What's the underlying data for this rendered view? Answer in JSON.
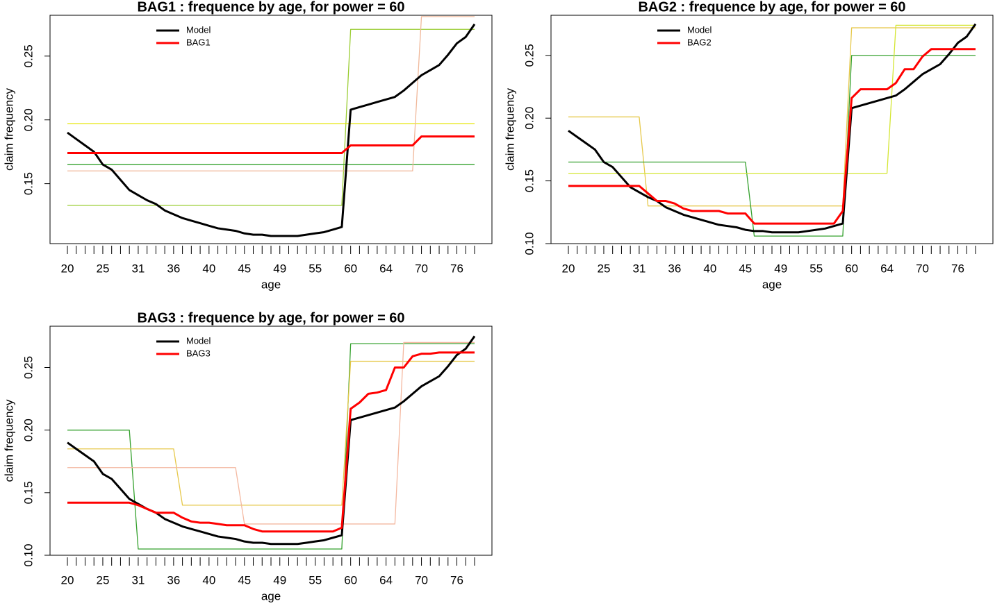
{
  "chart_data": [
    {
      "type": "line",
      "title": "BAG1 : frequence by age, for power = 60",
      "x_label": "age",
      "y_label": "claim frequency",
      "legend": "top-left",
      "categories": [
        "20",
        null,
        null,
        null,
        "25",
        null,
        null,
        null,
        "31",
        null,
        null,
        null,
        "36",
        null,
        null,
        null,
        "40",
        null,
        null,
        null,
        "45",
        null,
        null,
        null,
        "49",
        null,
        null,
        null,
        "55",
        null,
        null,
        null,
        "60",
        null,
        null,
        null,
        "64",
        null,
        null,
        null,
        "70",
        null,
        null,
        null,
        "76",
        null,
        null
      ],
      "ylim": [
        0.103,
        0.282
      ],
      "yticks": [
        0.15,
        {
          "value": 0.2,
          "label": "0.20"
        },
        0.25
      ],
      "series": [
        {
          "name": "Model",
          "color": "#000000",
          "values": [
            0.19,
            0.185,
            0.18,
            0.175,
            0.165,
            0.161,
            0.153,
            0.145,
            0.141,
            0.137,
            0.134,
            0.129,
            0.126,
            0.123,
            0.121,
            0.119,
            0.117,
            0.115,
            0.114,
            0.113,
            0.111,
            0.11,
            0.11,
            0.109,
            0.109,
            0.109,
            0.109,
            0.11,
            0.111,
            0.112,
            0.114,
            0.116,
            0.208,
            0.21,
            0.212,
            0.214,
            0.216,
            0.218,
            0.223,
            0.229,
            0.235,
            0.239,
            0.243,
            0.251,
            0.26,
            0.265,
            0.275
          ]
        },
        {
          "name": "BAG1",
          "color": "#ff0000",
          "values": [
            0.174,
            0.174,
            0.174,
            0.174,
            0.174,
            0.174,
            0.174,
            0.174,
            0.174,
            0.174,
            0.174,
            0.174,
            0.174,
            0.174,
            0.174,
            0.174,
            0.174,
            0.174,
            0.174,
            0.174,
            0.174,
            0.174,
            0.174,
            0.174,
            0.174,
            0.174,
            0.174,
            0.174,
            0.174,
            0.174,
            0.174,
            0.174,
            0.18,
            0.18,
            0.18,
            0.18,
            0.18,
            0.18,
            0.18,
            0.18,
            0.187,
            0.187,
            0.187,
            0.187,
            0.187,
            0.187,
            0.187
          ]
        }
      ],
      "trees": [
        {
          "color": "#9acd32",
          "values": [
            0.133,
            0.133,
            0.133,
            0.133,
            0.133,
            0.133,
            0.133,
            0.133,
            0.133,
            0.133,
            0.133,
            0.133,
            0.133,
            0.133,
            0.133,
            0.133,
            0.133,
            0.133,
            0.133,
            0.133,
            0.133,
            0.133,
            0.133,
            0.133,
            0.133,
            0.133,
            0.133,
            0.133,
            0.133,
            0.133,
            0.133,
            0.133,
            0.271,
            0.271,
            0.271,
            0.271,
            0.271,
            0.271,
            0.271,
            0.271,
            0.271,
            0.271,
            0.271,
            0.271,
            0.271,
            0.271,
            0.271
          ]
        },
        {
          "color": "#e6e600",
          "values": [
            0.197,
            0.197,
            0.197,
            0.197,
            0.197,
            0.197,
            0.197,
            0.197,
            0.197,
            0.197,
            0.197,
            0.197,
            0.197,
            0.197,
            0.197,
            0.197,
            0.197,
            0.197,
            0.197,
            0.197,
            0.197,
            0.197,
            0.197,
            0.197,
            0.197,
            0.197,
            0.197,
            0.197,
            0.197,
            0.197,
            0.197,
            0.197,
            0.197,
            0.197,
            0.197,
            0.197,
            0.197,
            0.197,
            0.197,
            0.197,
            0.197,
            0.197,
            0.197,
            0.197,
            0.197,
            0.197,
            0.197
          ]
        },
        {
          "color": "#33a02c",
          "values": [
            0.165,
            0.165,
            0.165,
            0.165,
            0.165,
            0.165,
            0.165,
            0.165,
            0.165,
            0.165,
            0.165,
            0.165,
            0.165,
            0.165,
            0.165,
            0.165,
            0.165,
            0.165,
            0.165,
            0.165,
            0.165,
            0.165,
            0.165,
            0.165,
            0.165,
            0.165,
            0.165,
            0.165,
            0.165,
            0.165,
            0.165,
            0.165,
            0.165,
            0.165,
            0.165,
            0.165,
            0.165,
            0.165,
            0.165,
            0.165,
            0.165,
            0.165,
            0.165,
            0.165,
            0.165,
            0.165,
            0.165
          ]
        },
        {
          "color": "#f0b89a",
          "values": [
            0.16,
            0.16,
            0.16,
            0.16,
            0.16,
            0.16,
            0.16,
            0.16,
            0.16,
            0.16,
            0.16,
            0.16,
            0.16,
            0.16,
            0.16,
            0.16,
            0.16,
            0.16,
            0.16,
            0.16,
            0.16,
            0.16,
            0.16,
            0.16,
            0.16,
            0.16,
            0.16,
            0.16,
            0.16,
            0.16,
            0.16,
            0.16,
            0.16,
            0.16,
            0.16,
            0.16,
            0.16,
            0.16,
            0.16,
            0.16,
            0.281,
            0.281,
            0.281,
            0.281,
            0.281,
            0.281,
            0.281
          ]
        }
      ]
    },
    {
      "type": "line",
      "title": "BAG2 : frequence by age, for power = 60",
      "x_label": "age",
      "y_label": "claim frequency",
      "legend": "top-left",
      "categories": [
        "20",
        null,
        null,
        null,
        "25",
        null,
        null,
        null,
        "31",
        null,
        null,
        null,
        "36",
        null,
        null,
        null,
        "40",
        null,
        null,
        null,
        "45",
        null,
        null,
        null,
        "49",
        null,
        null,
        null,
        "55",
        null,
        null,
        null,
        "60",
        null,
        null,
        null,
        "64",
        null,
        null,
        null,
        "70",
        null,
        null,
        null,
        "76",
        null,
        null
      ],
      "ylim": [
        0.1,
        0.282
      ],
      "yticks": [
        {
          "value": 0.1,
          "label": "0.10"
        },
        0.15,
        {
          "value": 0.2,
          "label": "0.20"
        },
        0.25
      ],
      "series": [
        {
          "name": "Model",
          "color": "#000000",
          "values": [
            0.19,
            0.185,
            0.18,
            0.175,
            0.165,
            0.161,
            0.153,
            0.145,
            0.141,
            0.137,
            0.134,
            0.129,
            0.126,
            0.123,
            0.121,
            0.119,
            0.117,
            0.115,
            0.114,
            0.113,
            0.111,
            0.11,
            0.11,
            0.109,
            0.109,
            0.109,
            0.109,
            0.11,
            0.111,
            0.112,
            0.114,
            0.116,
            0.208,
            0.21,
            0.212,
            0.214,
            0.216,
            0.218,
            0.223,
            0.229,
            0.235,
            0.239,
            0.243,
            0.251,
            0.26,
            0.265,
            0.275
          ]
        },
        {
          "name": "BAG2",
          "color": "#ff0000",
          "values": [
            0.146,
            0.146,
            0.146,
            0.146,
            0.146,
            0.146,
            0.146,
            0.146,
            0.146,
            0.14,
            0.134,
            0.134,
            0.132,
            0.128,
            0.126,
            0.126,
            0.126,
            0.126,
            0.124,
            0.124,
            0.124,
            0.116,
            0.116,
            0.116,
            0.116,
            0.116,
            0.116,
            0.116,
            0.116,
            0.116,
            0.116,
            0.126,
            0.216,
            0.223,
            0.223,
            0.223,
            0.223,
            0.228,
            0.239,
            0.239,
            0.249,
            0.255,
            0.255,
            0.255,
            0.255,
            0.255,
            0.255
          ]
        }
      ],
      "trees": [
        {
          "color": "#e6c84a",
          "values": [
            0.201,
            0.201,
            0.201,
            0.201,
            0.201,
            0.201,
            0.201,
            0.201,
            0.201,
            0.13,
            0.13,
            0.13,
            0.13,
            0.13,
            0.13,
            0.13,
            0.13,
            0.13,
            0.13,
            0.13,
            0.13,
            0.13,
            0.13,
            0.13,
            0.13,
            0.13,
            0.13,
            0.13,
            0.13,
            0.13,
            0.13,
            0.13,
            0.272,
            0.272,
            0.272,
            0.272,
            0.272,
            0.272,
            0.272,
            0.272,
            0.272,
            0.272,
            0.272,
            0.272,
            0.272,
            0.272,
            0.272
          ]
        },
        {
          "color": "#33a02c",
          "values": [
            0.165,
            0.165,
            0.165,
            0.165,
            0.165,
            0.165,
            0.165,
            0.165,
            0.165,
            0.165,
            0.165,
            0.165,
            0.165,
            0.165,
            0.165,
            0.165,
            0.165,
            0.165,
            0.165,
            0.165,
            0.165,
            0.106,
            0.106,
            0.106,
            0.106,
            0.106,
            0.106,
            0.106,
            0.106,
            0.106,
            0.106,
            0.106,
            0.25,
            0.25,
            0.25,
            0.25,
            0.25,
            0.25,
            0.25,
            0.25,
            0.25,
            0.25,
            0.25,
            0.25,
            0.25,
            0.25,
            0.25
          ]
        },
        {
          "color": "#d4e632",
          "values": [
            0.156,
            0.156,
            0.156,
            0.156,
            0.156,
            0.156,
            0.156,
            0.156,
            0.156,
            0.156,
            0.156,
            0.156,
            0.156,
            0.156,
            0.156,
            0.156,
            0.156,
            0.156,
            0.156,
            0.156,
            0.156,
            0.156,
            0.156,
            0.156,
            0.156,
            0.156,
            0.156,
            0.156,
            0.156,
            0.156,
            0.156,
            0.156,
            0.156,
            0.156,
            0.156,
            0.156,
            0.156,
            0.274,
            0.274,
            0.274,
            0.274,
            0.274,
            0.274,
            0.274,
            0.274,
            0.274,
            0.274
          ]
        }
      ]
    },
    {
      "type": "line",
      "title": "BAG3 : frequence by age, for power = 60",
      "x_label": "age",
      "y_label": "claim frequency",
      "legend": "top-left",
      "categories": [
        "20",
        null,
        null,
        null,
        "25",
        null,
        null,
        null,
        "31",
        null,
        null,
        null,
        "36",
        null,
        null,
        null,
        "40",
        null,
        null,
        null,
        "45",
        null,
        null,
        null,
        "49",
        null,
        null,
        null,
        "55",
        null,
        null,
        null,
        "60",
        null,
        null,
        null,
        "64",
        null,
        null,
        null,
        "70",
        null,
        null,
        null,
        "76",
        null,
        null
      ],
      "ylim": [
        0.1,
        0.283
      ],
      "yticks": [
        {
          "value": 0.1,
          "label": "0.10"
        },
        0.15,
        {
          "value": 0.2,
          "label": "0.20"
        },
        0.25
      ],
      "series": [
        {
          "name": "Model",
          "color": "#000000",
          "values": [
            0.19,
            0.185,
            0.18,
            0.175,
            0.165,
            0.161,
            0.153,
            0.145,
            0.141,
            0.137,
            0.134,
            0.129,
            0.126,
            0.123,
            0.121,
            0.119,
            0.117,
            0.115,
            0.114,
            0.113,
            0.111,
            0.11,
            0.11,
            0.109,
            0.109,
            0.109,
            0.109,
            0.11,
            0.111,
            0.112,
            0.114,
            0.116,
            0.208,
            0.21,
            0.212,
            0.214,
            0.216,
            0.218,
            0.223,
            0.229,
            0.235,
            0.239,
            0.243,
            0.251,
            0.26,
            0.265,
            0.275
          ]
        },
        {
          "name": "BAG3",
          "color": "#ff0000",
          "values": [
            0.142,
            0.142,
            0.142,
            0.142,
            0.142,
            0.142,
            0.142,
            0.142,
            0.14,
            0.137,
            0.134,
            0.134,
            0.134,
            0.13,
            0.127,
            0.126,
            0.126,
            0.125,
            0.124,
            0.124,
            0.124,
            0.121,
            0.119,
            0.119,
            0.119,
            0.119,
            0.119,
            0.119,
            0.119,
            0.119,
            0.119,
            0.122,
            0.217,
            0.222,
            0.229,
            0.23,
            0.232,
            0.25,
            0.25,
            0.259,
            0.261,
            0.261,
            0.262,
            0.262,
            0.262,
            0.262,
            0.262
          ]
        }
      ],
      "trees": [
        {
          "color": "#33a02c",
          "values": [
            0.2,
            0.2,
            0.2,
            0.2,
            0.2,
            0.2,
            0.2,
            0.2,
            0.105,
            0.105,
            0.105,
            0.105,
            0.105,
            0.105,
            0.105,
            0.105,
            0.105,
            0.105,
            0.105,
            0.105,
            0.105,
            0.105,
            0.105,
            0.105,
            0.105,
            0.105,
            0.105,
            0.105,
            0.105,
            0.105,
            0.105,
            0.105,
            0.269,
            0.269,
            0.269,
            0.269,
            0.269,
            0.269,
            0.269,
            0.269,
            0.269,
            0.269,
            0.269,
            0.269,
            0.269,
            0.269,
            0.269
          ]
        },
        {
          "color": "#e6c84a",
          "values": [
            0.185,
            0.185,
            0.185,
            0.185,
            0.185,
            0.185,
            0.185,
            0.185,
            0.185,
            0.185,
            0.185,
            0.185,
            0.185,
            0.14,
            0.14,
            0.14,
            0.14,
            0.14,
            0.14,
            0.14,
            0.14,
            0.14,
            0.14,
            0.14,
            0.14,
            0.14,
            0.14,
            0.14,
            0.14,
            0.14,
            0.14,
            0.14,
            0.255,
            0.255,
            0.255,
            0.255,
            0.255,
            0.255,
            0.255,
            0.255,
            0.255,
            0.255,
            0.255,
            0.255,
            0.255,
            0.255,
            0.255
          ]
        },
        {
          "color": "#f4b8a0",
          "values": [
            0.17,
            0.17,
            0.17,
            0.17,
            0.17,
            0.17,
            0.17,
            0.17,
            0.17,
            0.17,
            0.17,
            0.17,
            0.17,
            0.17,
            0.17,
            0.17,
            0.17,
            0.17,
            0.17,
            0.17,
            0.125,
            0.125,
            0.125,
            0.125,
            0.125,
            0.125,
            0.125,
            0.125,
            0.125,
            0.125,
            0.125,
            0.125,
            0.125,
            0.125,
            0.125,
            0.125,
            0.125,
            0.125,
            0.27,
            0.27,
            0.27,
            0.27,
            0.27,
            0.27,
            0.27,
            0.27,
            0.27
          ]
        }
      ]
    }
  ]
}
